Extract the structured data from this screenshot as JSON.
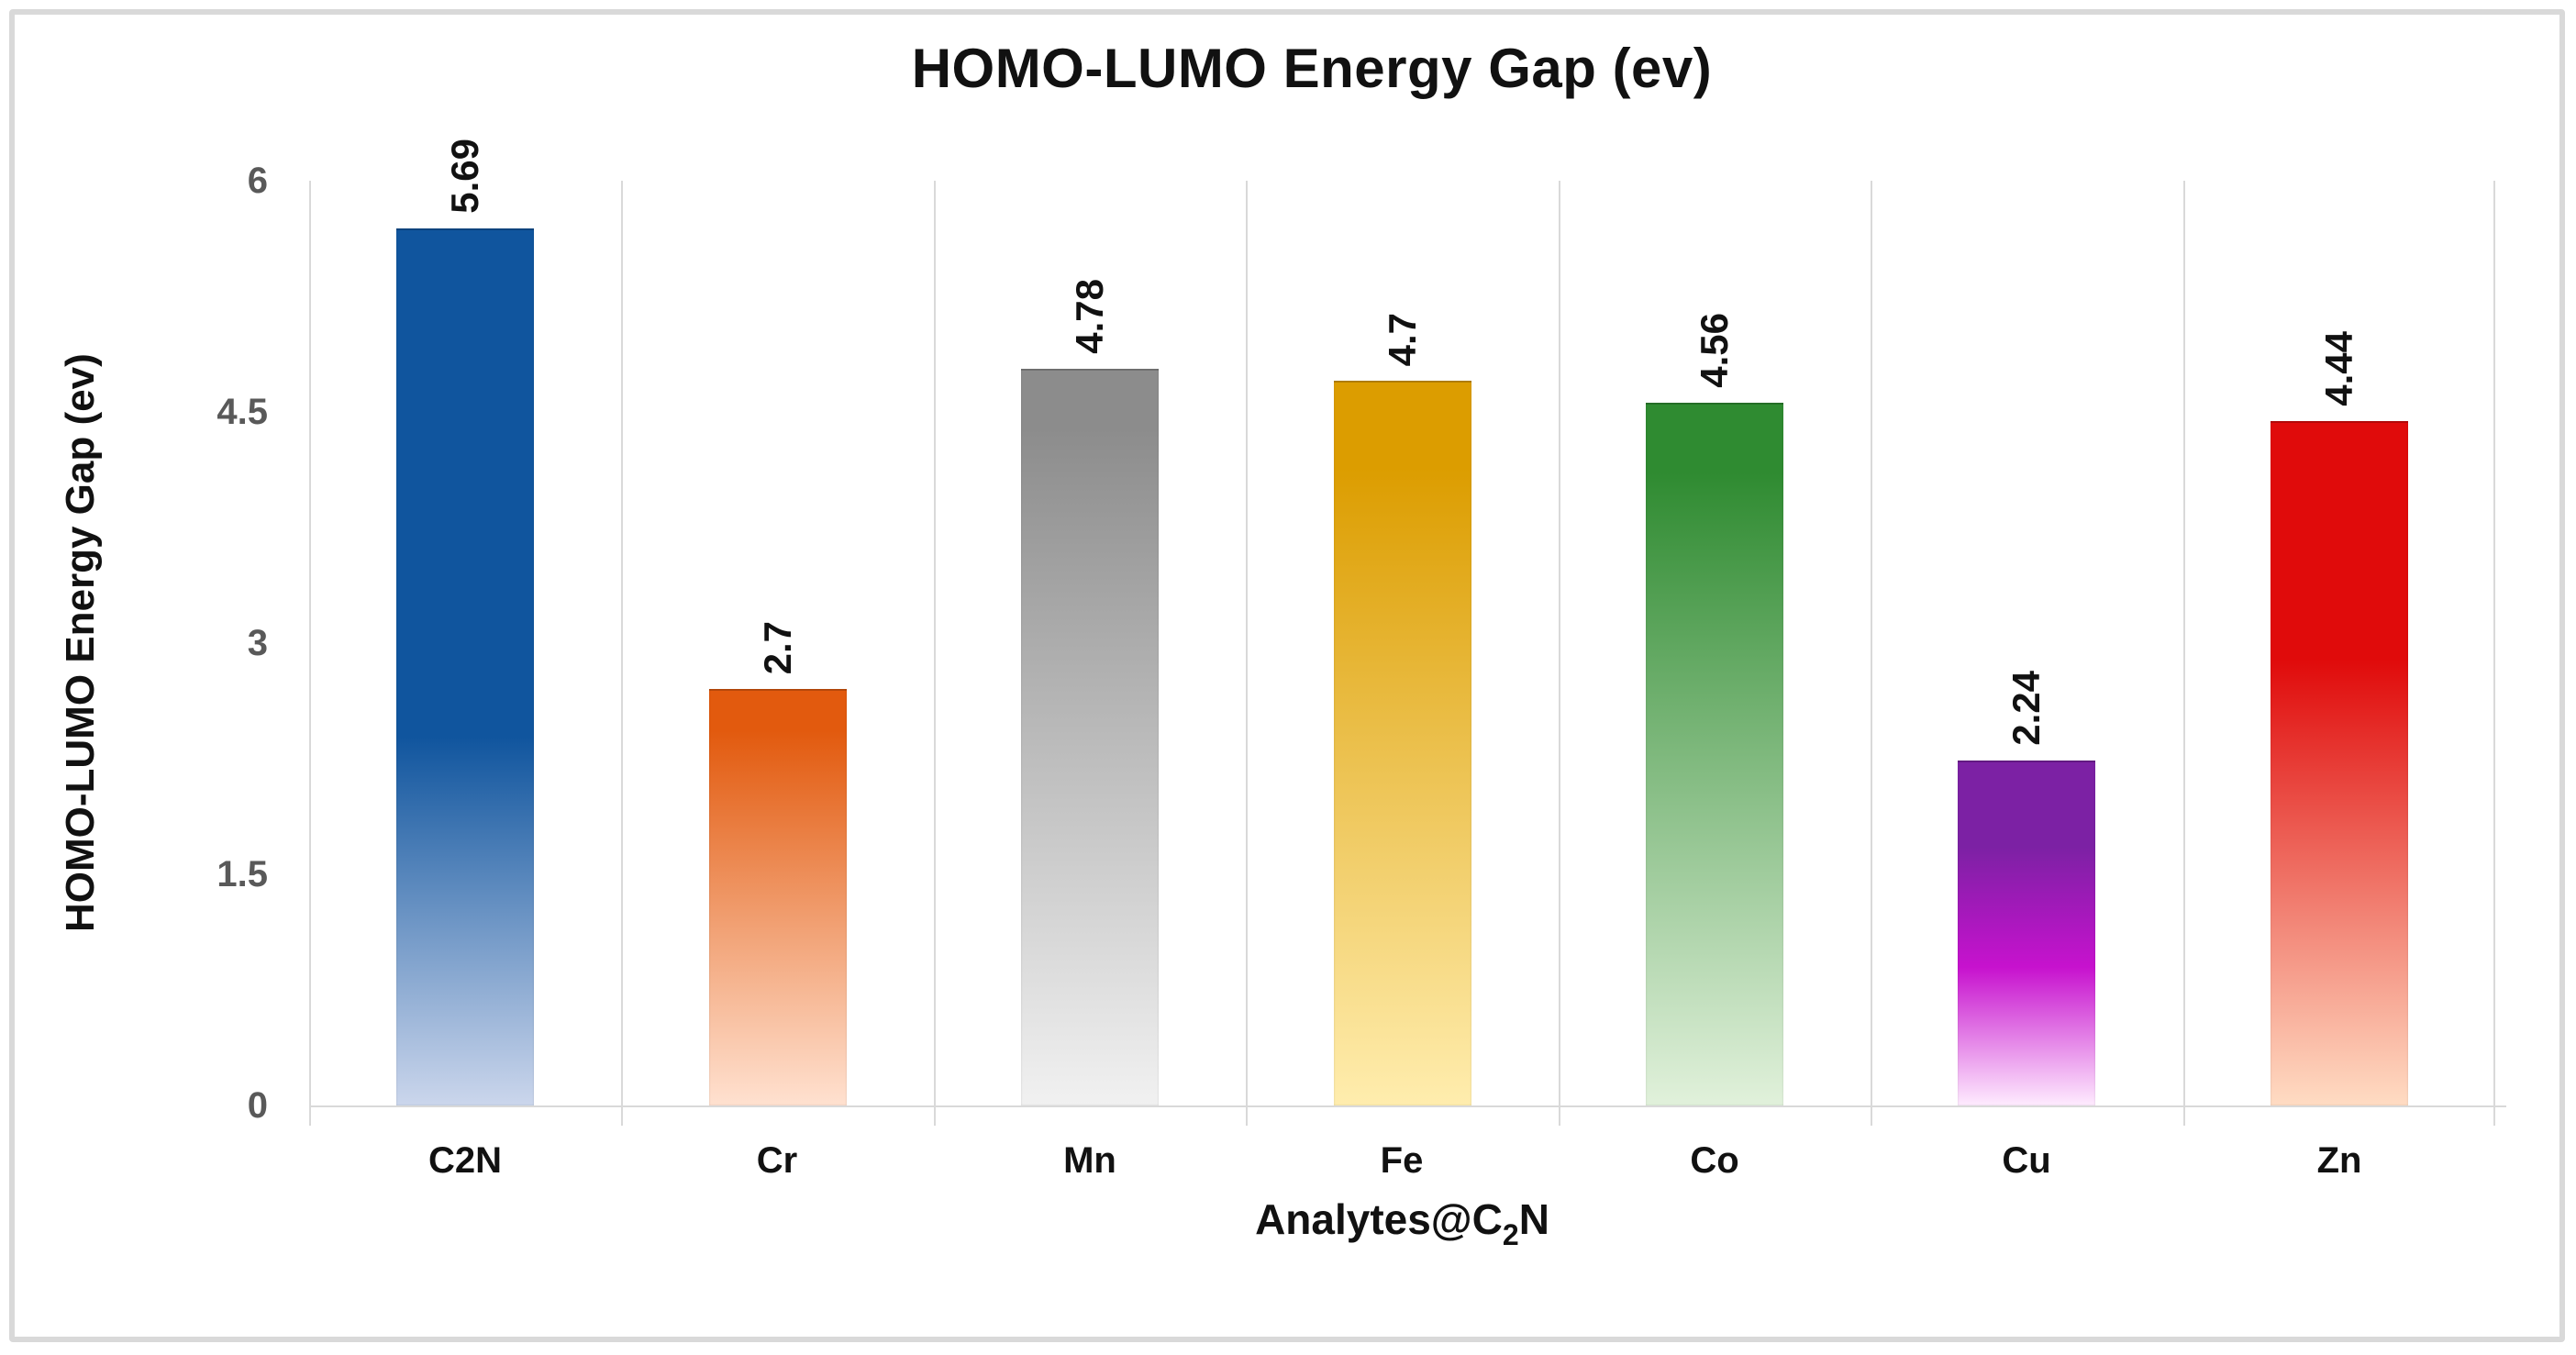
{
  "title": "HOMO-LUMO Energy Gap (ev)",
  "y_axis": {
    "title": "HOMO-LUMO Energy Gap (ev)",
    "tick_label_color": "#595959"
  },
  "x_axis": {
    "title_base": "Analytes@C",
    "title_sub": "2",
    "title_tail": "N"
  },
  "style": {
    "background": "#ffffff",
    "frame_color": "#d9d9d9",
    "grid_color": "#d9d9d9",
    "axis_line_color": "#d9d9d9",
    "text_color": "#111111",
    "tick_label_color": "#595959"
  },
  "chart_data": {
    "type": "bar",
    "title": "HOMO-LUMO Energy Gap (ev)",
    "xlabel": "Analytes@C2N",
    "ylabel": "HOMO-LUMO Energy Gap (ev)",
    "ylim": [
      0,
      6
    ],
    "yticks": [
      0,
      1.5,
      3,
      4.5,
      6
    ],
    "ytick_labels": [
      "0",
      "1.5",
      "3",
      "4.5",
      "6"
    ],
    "grid": "vertical category gridlines only, no horizontal gridlines",
    "legend": "none",
    "categories": [
      "C2N",
      "Cr",
      "Mn",
      "Fe",
      "Co",
      "Cu",
      "Zn"
    ],
    "values": [
      5.69,
      2.7,
      4.78,
      4.7,
      4.56,
      2.24,
      4.44
    ],
    "value_labels": [
      "5.69",
      "2.7",
      "4.78",
      "4.7",
      "4.56",
      "2.24",
      "4.44"
    ],
    "value_label_style": "rotated 90deg counterclockwise above each bar",
    "bar_gradients": [
      {
        "category": "C2N",
        "top": "#10559E",
        "hold": 58,
        "mid": null,
        "mid_pos": null,
        "bottom": "#CBD6EC"
      },
      {
        "category": "Cr",
        "top": "#E25A0E",
        "hold": 10,
        "mid": null,
        "mid_pos": null,
        "bottom": "#FFE1D0"
      },
      {
        "category": "Mn",
        "top": "#8C8C8C",
        "hold": 8,
        "mid": null,
        "mid_pos": null,
        "bottom": "#F1F1F1"
      },
      {
        "category": "Fe",
        "top": "#DC9D00",
        "hold": 12,
        "mid": null,
        "mid_pos": null,
        "bottom": "#FFEDAE"
      },
      {
        "category": "Co",
        "top": "#2F8B31",
        "hold": 10,
        "mid": null,
        "mid_pos": null,
        "bottom": "#E1F1DB"
      },
      {
        "category": "Cu",
        "top": "#7C21A4",
        "hold": 25,
        "mid": "#C712CE",
        "mid_pos": 60,
        "bottom": "#FEEBFE"
      },
      {
        "category": "Zn",
        "top": "#E00B0B",
        "hold": 35,
        "mid": null,
        "mid_pos": null,
        "bottom": "#FFDCC3"
      }
    ]
  }
}
